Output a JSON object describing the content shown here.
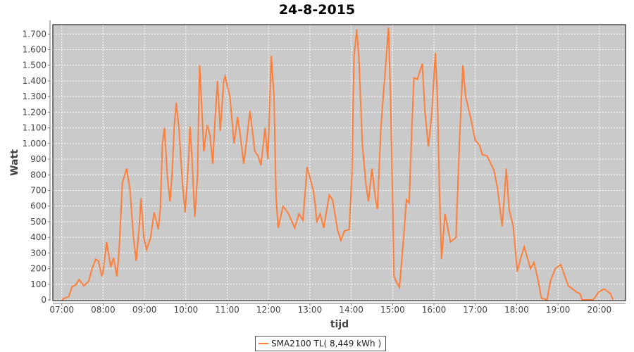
{
  "chart_data": {
    "type": "line",
    "title": "24-8-2015",
    "xlabel": "tijd",
    "ylabel": "Watt",
    "ylim": [
      0,
      1750
    ],
    "xlim": [
      "06:47",
      "20:38"
    ],
    "yticks": [
      0,
      100,
      200,
      300,
      400,
      500,
      600,
      700,
      800,
      900,
      1000,
      1100,
      1200,
      1300,
      1400,
      1500,
      1600,
      1700
    ],
    "ytick_labels": [
      "0",
      "100",
      "200",
      "300",
      "400",
      "500",
      "600",
      "700",
      "800",
      "900",
      "1.000",
      "1.100",
      "1.200",
      "1.300",
      "1.400",
      "1.500",
      "1.600",
      "1.700"
    ],
    "xtick_labels": [
      "07:00",
      "08:00",
      "09:00",
      "10:00",
      "11:00",
      "12:00",
      "13:00",
      "14:00",
      "15:00",
      "16:00",
      "17:00",
      "18:00",
      "19:00",
      "20:00"
    ],
    "grid": true,
    "legend_position": "bottom",
    "colors": {
      "line": "#ff7f3a",
      "plot_bg": "#cacaca",
      "grid": "#ffffff"
    },
    "series": [
      {
        "name": "SMA2100 TL( 8,449 kWh )",
        "x": [
          "07:00",
          "07:06",
          "07:10",
          "07:15",
          "07:20",
          "07:25",
          "07:32",
          "07:39",
          "07:44",
          "07:49",
          "07:53",
          "07:58",
          "08:00",
          "08:05",
          "08:11",
          "08:15",
          "08:20",
          "08:23",
          "08:28",
          "08:34",
          "08:39",
          "08:44",
          "08:48",
          "08:52",
          "08:55",
          "08:59",
          "09:03",
          "09:09",
          "09:14",
          "09:20",
          "09:23",
          "09:26",
          "09:29",
          "09:33",
          "09:37",
          "09:40",
          "09:43",
          "09:46",
          "09:50",
          "09:55",
          "09:59",
          "10:04",
          "10:06",
          "10:09",
          "10:13",
          "10:17",
          "10:19",
          "10:20",
          "10:24",
          "10:26",
          "10:31",
          "10:35",
          "10:39",
          "10:43",
          "10:46",
          "10:50",
          "10:55",
          "10:57",
          "11:04",
          "11:10",
          "11:15",
          "11:19",
          "11:24",
          "11:29",
          "11:33",
          "11:40",
          "11:45",
          "11:49",
          "11:55",
          "11:59",
          "12:02",
          "12:04",
          "12:08",
          "12:11",
          "12:14",
          "12:21",
          "12:29",
          "12:38",
          "12:44",
          "12:50",
          "12:56",
          "13:05",
          "13:08",
          "13:10",
          "13:15",
          "13:20",
          "13:28",
          "13:33",
          "13:40",
          "13:45",
          "13:50",
          "13:57",
          "14:01",
          "14:04",
          "14:08",
          "14:11",
          "14:16",
          "14:21",
          "14:25",
          "14:30",
          "14:35",
          "14:38",
          "14:43",
          "14:49",
          "14:54",
          "14:57",
          "15:00",
          "15:02",
          "15:05",
          "15:10",
          "15:16",
          "15:20",
          "15:24",
          "15:28",
          "15:31",
          "15:36",
          "15:43",
          "15:47",
          "15:52",
          "15:57",
          "16:02",
          "16:05",
          "16:08",
          "16:11",
          "16:16",
          "16:24",
          "16:32",
          "16:37",
          "16:42",
          "16:46",
          "16:53",
          "17:00",
          "17:06",
          "17:10",
          "17:17",
          "17:27",
          "17:32",
          "17:39",
          "17:45",
          "17:49",
          "17:55",
          "18:01",
          "18:06",
          "18:11",
          "18:20",
          "18:25",
          "18:30",
          "18:36",
          "18:44",
          "18:49",
          "18:56",
          "19:04",
          "19:15",
          "19:27",
          "19:32",
          "19:35",
          "19:51",
          "19:59",
          "20:07",
          "20:16",
          "20:20"
        ],
        "y": [
          0,
          15,
          20,
          85,
          95,
          130,
          90,
          120,
          200,
          260,
          250,
          150,
          180,
          370,
          210,
          270,
          150,
          300,
          750,
          840,
          700,
          400,
          250,
          450,
          650,
          400,
          320,
          400,
          560,
          450,
          580,
          1000,
          1100,
          800,
          630,
          800,
          1100,
          1260,
          1100,
          750,
          560,
          900,
          1110,
          900,
          530,
          800,
          1300,
          1500,
          1150,
          950,
          1120,
          1050,
          870,
          1200,
          1400,
          1080,
          1400,
          1430,
          1300,
          1000,
          1170,
          1050,
          870,
          1050,
          1210,
          950,
          920,
          860,
          1100,
          900,
          1300,
          1560,
          1300,
          650,
          460,
          600,
          550,
          460,
          550,
          510,
          850,
          700,
          600,
          500,
          550,
          460,
          670,
          640,
          450,
          380,
          440,
          450,
          800,
          1550,
          1730,
          1550,
          1000,
          750,
          630,
          840,
          650,
          580,
          1100,
          1450,
          1740,
          1300,
          650,
          150,
          120,
          80,
          400,
          640,
          620,
          1100,
          1420,
          1410,
          1510,
          1200,
          980,
          1200,
          1580,
          1300,
          700,
          260,
          550,
          370,
          400,
          1000,
          1500,
          1300,
          1170,
          1020,
          990,
          930,
          920,
          830,
          720,
          470,
          840,
          580,
          470,
          180,
          270,
          340,
          200,
          240,
          150,
          10,
          0,
          120,
          200,
          225,
          90,
          50,
          40,
          0,
          0,
          50,
          70,
          40,
          0
        ]
      }
    ]
  }
}
